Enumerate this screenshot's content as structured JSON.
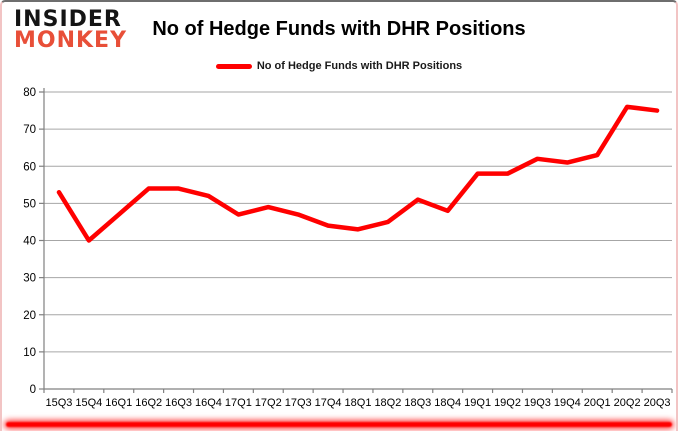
{
  "logo": {
    "line1": "INSIDER",
    "line2": "MONKEY"
  },
  "header": {
    "title": "No of Hedge Funds with DHR Positions"
  },
  "legend": {
    "label": "No of Hedge Funds with DHR Positions",
    "color": "#ff0000"
  },
  "colors": {
    "series": "#ff0000",
    "grid": "#a6a6a6",
    "axis": "#808080",
    "text": "#000000",
    "logo_black": "#141414",
    "logo_red": "#e84f38",
    "glow": "#ff0000"
  },
  "chart_data": {
    "type": "line",
    "title": "No of Hedge Funds with DHR Positions",
    "categories": [
      "15Q3",
      "15Q4",
      "16Q1",
      "16Q2",
      "16Q3",
      "16Q4",
      "17Q1",
      "17Q2",
      "17Q3",
      "17Q4",
      "18Q1",
      "18Q2",
      "18Q3",
      "18Q4",
      "19Q1",
      "19Q2",
      "19Q3",
      "19Q4",
      "20Q1",
      "20Q2",
      "20Q3"
    ],
    "series": [
      {
        "name": "No of Hedge Funds with DHR Positions",
        "color": "#ff0000",
        "values": [
          53,
          40,
          47,
          54,
          54,
          52,
          47,
          49,
          47,
          44,
          43,
          45,
          51,
          48,
          58,
          58,
          62,
          61,
          63,
          76,
          75
        ]
      }
    ],
    "xlabel": "",
    "ylabel": "",
    "ylim": [
      0,
      80
    ],
    "ytick_step": 10,
    "grid": true,
    "legend_position": "top"
  }
}
